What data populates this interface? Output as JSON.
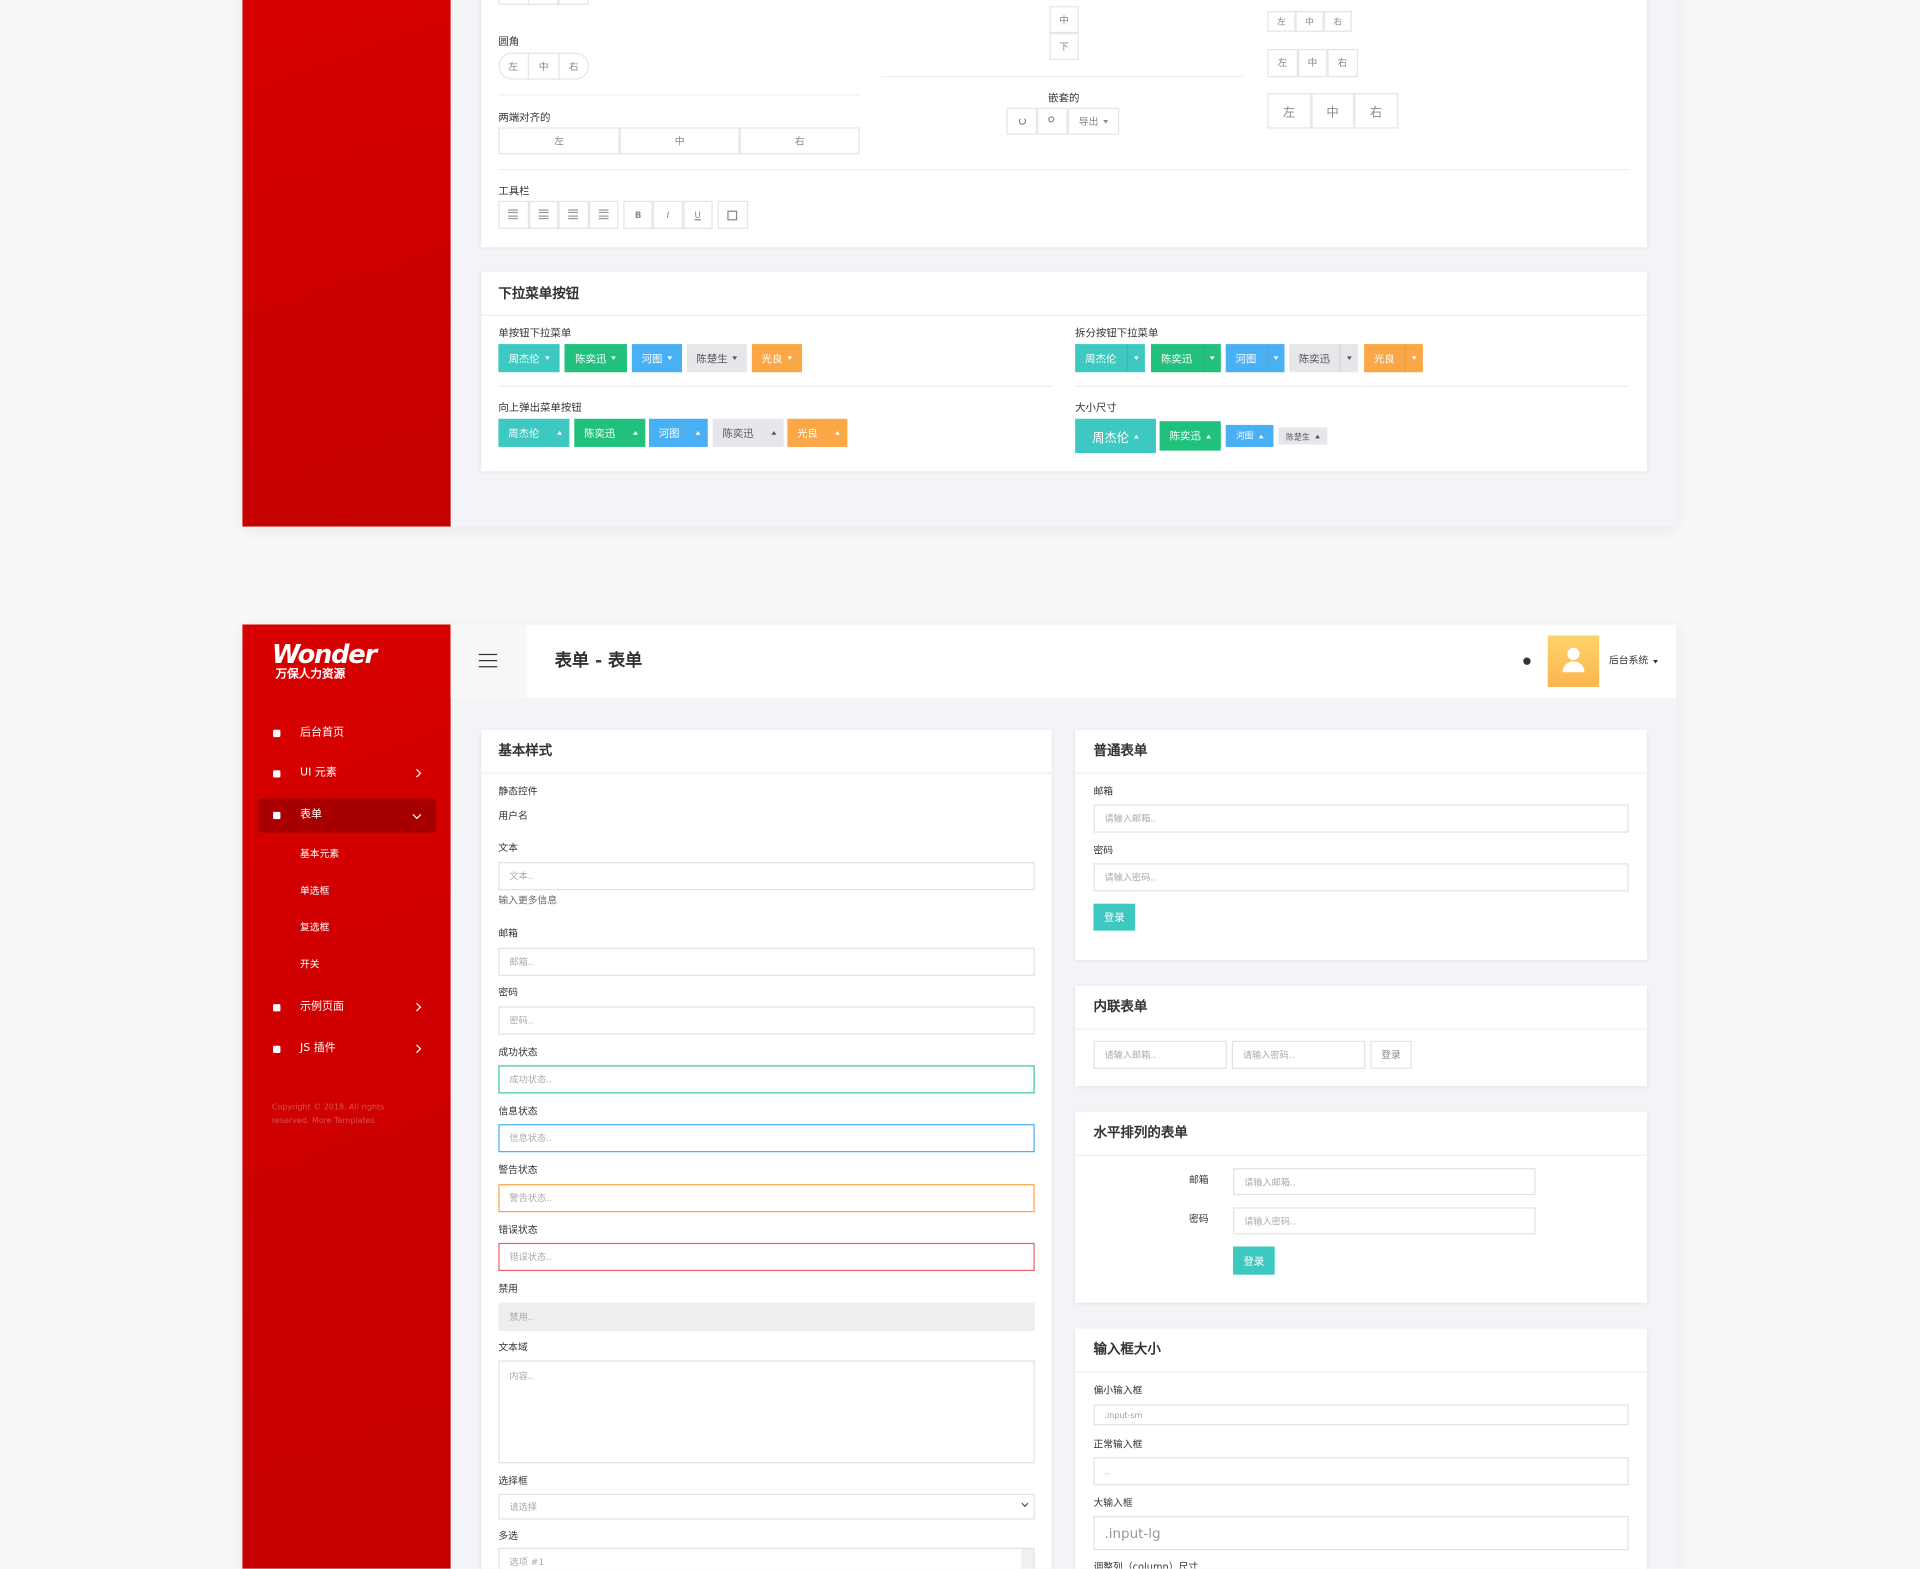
{
  "top_panel": {
    "button_groups_card": {
      "rounded": {
        "label": "圆角",
        "buttons": [
          "左",
          "中",
          "右"
        ]
      },
      "justified": {
        "label": "两端对齐的",
        "buttons": [
          "左",
          "中",
          "右"
        ]
      },
      "vertical": {
        "buttons": [
          "中",
          "下"
        ]
      },
      "nested": {
        "label": "嵌套的",
        "dropdown": "导出"
      },
      "sizes": {
        "small": [
          "左",
          "中",
          "右"
        ],
        "default": [
          "左",
          "中",
          "右"
        ],
        "large": [
          "左",
          "中",
          "右"
        ]
      },
      "toolbar": {
        "label": "工具栏",
        "format_buttons": [
          "B",
          "I",
          "U"
        ]
      }
    },
    "dropdown_card": {
      "title": "下拉菜单按钮",
      "single": {
        "label": "单按钮下拉菜单",
        "buttons": [
          "周杰伦",
          "陈奕迅",
          "河图",
          "陈楚生",
          "光良"
        ]
      },
      "dropup": {
        "label": "向上弹出菜单按钮",
        "buttons": [
          "周杰伦",
          "陈奕迅",
          "河图",
          "陈奕迅",
          "光良"
        ]
      },
      "split": {
        "label": "拆分按钮下拉菜单",
        "buttons": [
          "周杰伦",
          "陈奕迅",
          "河图",
          "陈奕迅",
          "光良"
        ]
      },
      "sizing": {
        "label": "大小尺寸",
        "buttons": [
          "周杰伦",
          "陈奕迅",
          "河图",
          "陈楚生"
        ]
      }
    }
  },
  "bottom_panel": {
    "logo": {
      "brand": "Wonder",
      "subtitle": "万保人力资源"
    },
    "menu": [
      {
        "label": "后台首页"
      },
      {
        "label": "UI 元素"
      },
      {
        "label": "表单",
        "children": [
          "基本元素",
          "单选框",
          "复选框",
          "开关"
        ]
      },
      {
        "label": "示例页面"
      },
      {
        "label": "JS 插件"
      }
    ],
    "copyright": "Copyright © 2018. All rights reserved. More Templates",
    "header": {
      "title": "表单 - 表单",
      "user": "后台系统"
    },
    "basic_card": {
      "title": "基本样式",
      "fields": [
        {
          "label": "静态控件",
          "static": "用户名"
        },
        {
          "label": "文本",
          "placeholder": "文本..",
          "help": "输入更多信息"
        },
        {
          "label": "邮箱",
          "placeholder": "邮箱.."
        },
        {
          "label": "密码",
          "placeholder": "密码.."
        },
        {
          "label": "成功状态",
          "placeholder": "成功状态.."
        },
        {
          "label": "信息状态",
          "placeholder": "信息状态.."
        },
        {
          "label": "警告状态",
          "placeholder": "警告状态.."
        },
        {
          "label": "错误状态",
          "placeholder": "错误状态.."
        },
        {
          "label": "禁用",
          "placeholder": "禁用.."
        },
        {
          "label": "文本域",
          "placeholder": "内容.."
        },
        {
          "label": "选择框",
          "placeholder": "请选择"
        },
        {
          "label": "多选",
          "placeholder": "选项 #1"
        }
      ]
    },
    "normal_form": {
      "title": "普通表单",
      "fields": [
        {
          "label": "邮箱",
          "placeholder": "请输入邮箱.."
        },
        {
          "label": "密码",
          "placeholder": "请输入密码.."
        }
      ],
      "button": "登录"
    },
    "inline_form": {
      "title": "内联表单",
      "placeholders": [
        "请输入邮箱..",
        "请输入密码.."
      ],
      "button": "登录"
    },
    "horizontal_form": {
      "title": "水平排列的表单",
      "fields": [
        {
          "label": "邮箱",
          "placeholder": "请输入邮箱.."
        },
        {
          "label": "密码",
          "placeholder": "请输入密码.."
        }
      ],
      "button": "登录"
    },
    "input_sizes": {
      "title": "输入框大小",
      "fields": [
        {
          "label": "偏小输入框",
          "placeholder": ".input-sm"
        },
        {
          "label": "正常输入框",
          "placeholder": ".."
        },
        {
          "label": "大输入框",
          "placeholder": ".input-lg"
        }
      ],
      "next_label": "调整列（column）尺寸"
    }
  }
}
